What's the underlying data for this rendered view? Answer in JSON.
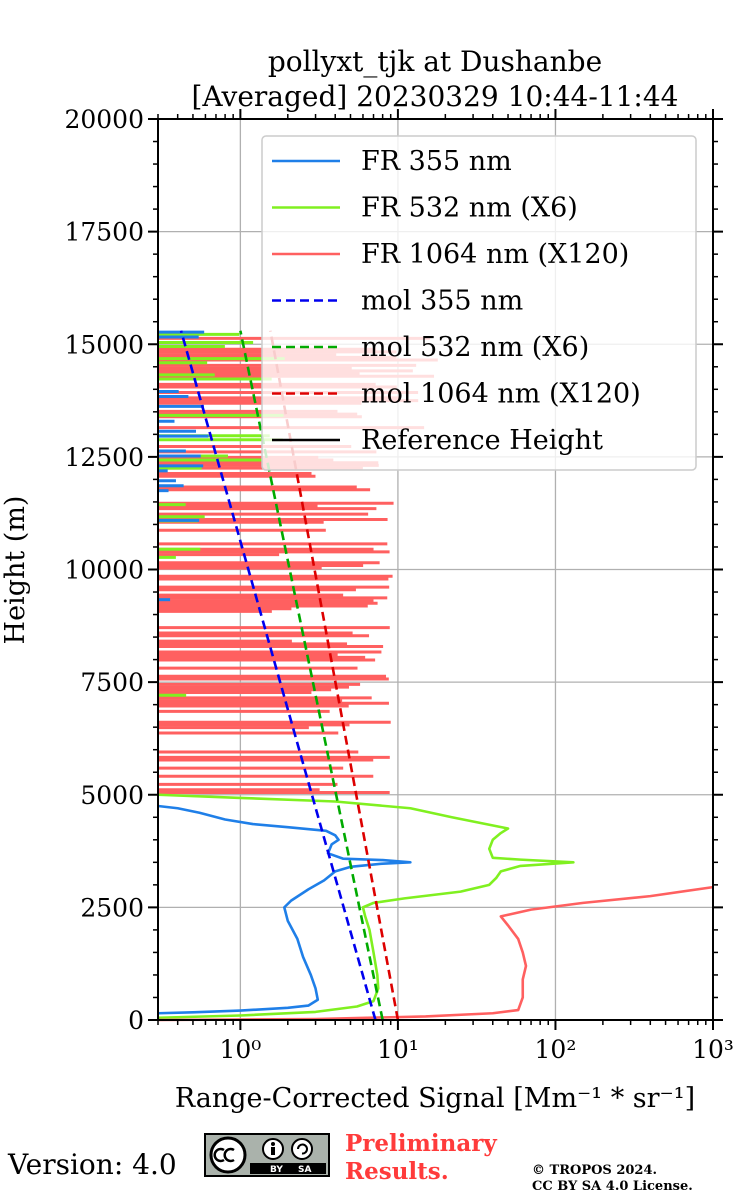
{
  "chart_data": {
    "type": "line",
    "title": [
      "pollyxt_tjk at Dushanbe",
      "[Averaged] 20230329 10:44-11:44"
    ],
    "xlabel": "Range-Corrected Signal [Mm⁻¹ * sr⁻¹]",
    "ylabel": "Height (m)",
    "xscale": "log",
    "xlim": [
      0.3,
      1000
    ],
    "ylim": [
      0,
      20000
    ],
    "xticks": [
      {
        "value": 1,
        "label": "10⁰"
      },
      {
        "value": 10,
        "label": "10¹"
      },
      {
        "value": 100,
        "label": "10²"
      },
      {
        "value": 1000,
        "label": "10³"
      }
    ],
    "yticks": [
      0,
      2500,
      5000,
      7500,
      10000,
      12500,
      15000,
      17500,
      20000
    ],
    "grid": true,
    "legend_position": "upper-right",
    "series": [
      {
        "name": "FR 355 nm",
        "color": "#1f7fe8",
        "style": "solid",
        "points": [
          [
            0.3,
            150
          ],
          [
            0.5,
            170
          ],
          [
            1.0,
            210
          ],
          [
            2.0,
            270
          ],
          [
            2.7,
            320
          ],
          [
            3.1,
            450
          ],
          [
            3.0,
            700
          ],
          [
            2.8,
            1000
          ],
          [
            2.5,
            1400
          ],
          [
            2.3,
            1800
          ],
          [
            2.0,
            2200
          ],
          [
            1.9,
            2500
          ],
          [
            2.1,
            2650
          ],
          [
            2.7,
            2900
          ],
          [
            3.4,
            3100
          ],
          [
            4.0,
            3300
          ],
          [
            5.0,
            3400
          ],
          [
            8.0,
            3470
          ],
          [
            12,
            3500
          ],
          [
            8,
            3550
          ],
          [
            4.5,
            3580
          ],
          [
            3.6,
            3700
          ],
          [
            3.8,
            3900
          ],
          [
            4.2,
            4000
          ],
          [
            4.0,
            4100
          ],
          [
            3.5,
            4200
          ],
          [
            2.0,
            4280
          ],
          [
            1.2,
            4350
          ],
          [
            0.8,
            4450
          ],
          [
            0.55,
            4600
          ],
          [
            0.4,
            4700
          ],
          [
            0.3,
            4750
          ]
        ]
      },
      {
        "name": "FR 532 nm (X6)",
        "color": "#80f020",
        "style": "solid",
        "points": [
          [
            0.3,
            50
          ],
          [
            1.0,
            100
          ],
          [
            3.0,
            180
          ],
          [
            5.5,
            300
          ],
          [
            7.0,
            420
          ],
          [
            7.5,
            700
          ],
          [
            7.4,
            1000
          ],
          [
            7.0,
            1500
          ],
          [
            6.6,
            2000
          ],
          [
            6.2,
            2300
          ],
          [
            6.0,
            2500
          ],
          [
            7.0,
            2600
          ],
          [
            11,
            2700
          ],
          [
            25,
            2850
          ],
          [
            38,
            3000
          ],
          [
            42,
            3150
          ],
          [
            45,
            3300
          ],
          [
            60,
            3420
          ],
          [
            130,
            3500
          ],
          [
            60,
            3560
          ],
          [
            40,
            3600
          ],
          [
            38,
            3800
          ],
          [
            40,
            4000
          ],
          [
            45,
            4150
          ],
          [
            50,
            4250
          ],
          [
            36,
            4350
          ],
          [
            22,
            4500
          ],
          [
            12,
            4700
          ],
          [
            4,
            4850
          ],
          [
            1,
            4930
          ],
          [
            0.3,
            5000
          ]
        ]
      },
      {
        "name": "FR 1064 nm (X120)",
        "color": "#ff6060",
        "style": "solid",
        "points": [
          [
            0.3,
            0
          ],
          [
            3,
            20
          ],
          [
            15,
            80
          ],
          [
            40,
            150
          ],
          [
            58,
            220
          ],
          [
            62,
            500
          ],
          [
            62,
            900
          ],
          [
            65,
            1200
          ],
          [
            62,
            1500
          ],
          [
            58,
            1800
          ],
          [
            50,
            2100
          ],
          [
            45,
            2300
          ],
          [
            70,
            2450
          ],
          [
            150,
            2600
          ],
          [
            400,
            2750
          ],
          [
            1000,
            2950
          ]
        ]
      },
      {
        "name": "mol 355 nm",
        "color": "#0000ee",
        "style": "dashed",
        "points": [
          [
            7.2,
            0
          ],
          [
            0.42,
            15300
          ]
        ]
      },
      {
        "name": "mol 532 nm (X6)",
        "color": "#00aa00",
        "style": "dashed",
        "points": [
          [
            8.0,
            0
          ],
          [
            1.0,
            15300
          ]
        ]
      },
      {
        "name": "mol 1064 nm (X120)",
        "color": "#dd0000",
        "style": "dashed",
        "points": [
          [
            10.0,
            0
          ],
          [
            1.55,
            15300
          ]
        ]
      },
      {
        "name": "Reference Height",
        "color": "#000000",
        "style": "solid",
        "points": []
      }
    ]
  },
  "footer": {
    "version": "Version: 4.0",
    "preliminary": [
      "Preliminary",
      "Results."
    ],
    "copyright": [
      "© TROPOS 2024.",
      "CC BY SA 4.0 License."
    ]
  }
}
